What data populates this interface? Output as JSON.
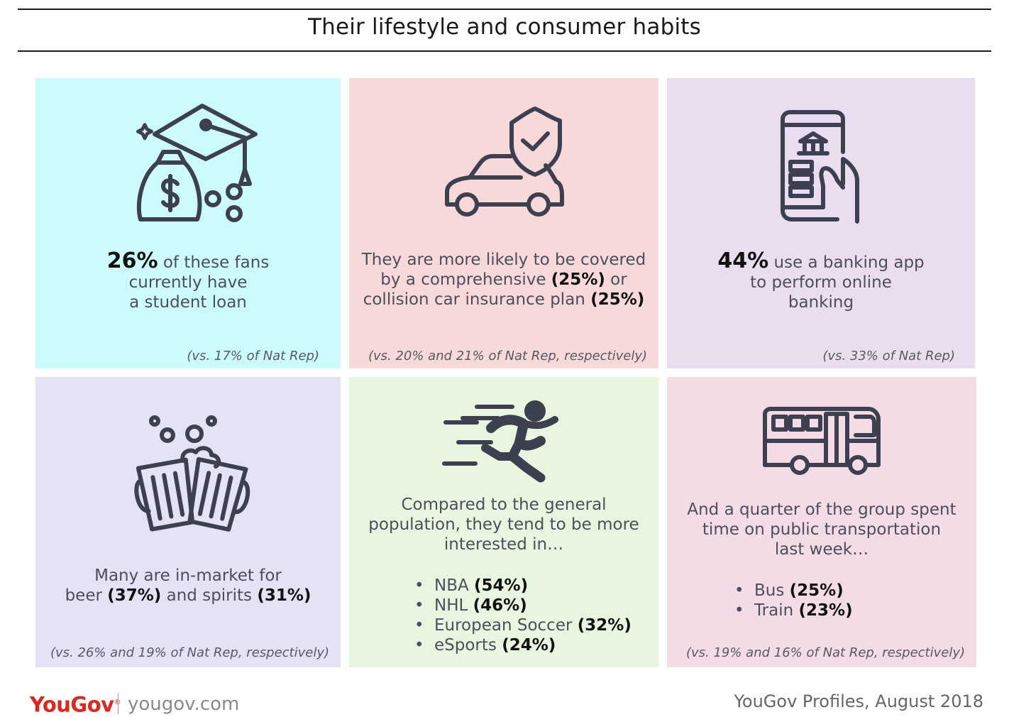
{
  "header": {
    "title": "Their lifestyle and consumer habits"
  },
  "cards": {
    "student_loan": {
      "icon": "graduation-money-bag-icon",
      "color": "#ccfbfb",
      "stat": "26%",
      "line1": " of these fans",
      "line2": "currently have",
      "line3": "a student loan",
      "note": "(vs. 17% of Nat Rep)"
    },
    "car_insurance": {
      "icon": "car-shield-icon",
      "color": "#f7d9d9",
      "line1": "They are more likely to be covered",
      "line2a": "by a comprehensive ",
      "line2b": "(25%)",
      "line2c": " or",
      "line3a": "collision car insurance plan ",
      "line3b": "(25%)",
      "note": "(vs. 20% and 21% of Nat Rep, respectively)"
    },
    "banking": {
      "icon": "mobile-banking-icon",
      "color": "#eaddf0",
      "stat": "44%",
      "line1": " use a banking app",
      "line2": "to perform online",
      "line3": "banking",
      "note": "(vs. 33% of Nat Rep)"
    },
    "beer": {
      "icon": "beer-mugs-icon",
      "color": "#e5e2f5",
      "line1": "Many are in-market for",
      "line2a": "beer ",
      "line2b": "(37%)",
      "line2c": " and spirits ",
      "line2d": "(31%)",
      "note": "(vs. 26% and 19% of Nat Rep, respectively)"
    },
    "sports": {
      "icon": "running-man-icon",
      "color": "#e9f6df",
      "line1": "Compared to the general",
      "line2": "population, they tend to be more",
      "line3": "interested in…",
      "items": [
        {
          "label": "NBA ",
          "pct": "(54%)"
        },
        {
          "label": "NHL ",
          "pct": "(46%)"
        },
        {
          "label": "European Soccer ",
          "pct": "(32%)"
        },
        {
          "label": "eSports ",
          "pct": "(24%)"
        }
      ]
    },
    "transport": {
      "icon": "bus-icon",
      "color": "#f3dce6",
      "line1": "And a quarter of the group spent",
      "line2": "time on public transportation",
      "line3": "last week…",
      "items": [
        {
          "label": "Bus ",
          "pct": "(25%)"
        },
        {
          "label": "Train ",
          "pct": "(23%)"
        }
      ],
      "note": "(vs. 19% and 16% of Nat Rep, respectively)"
    }
  },
  "footer": {
    "logo_you": "You",
    "logo_gov": "Gov",
    "logo_reg": "®",
    "url": "yougov.com",
    "source": "YouGov Profiles, August 2018"
  }
}
